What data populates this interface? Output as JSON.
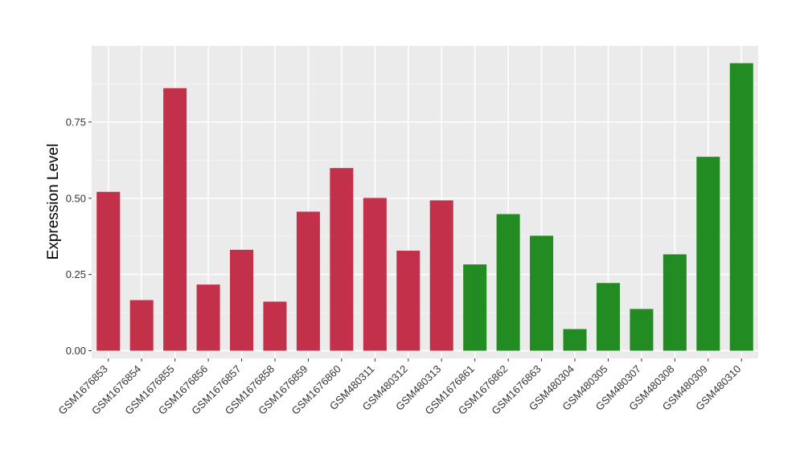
{
  "chart_data": {
    "type": "bar",
    "title": "",
    "xlabel": "",
    "ylabel": "Expression Level",
    "categories": [
      "GSM1676853",
      "GSM1676854",
      "GSM1676855",
      "GSM1676856",
      "GSM1676857",
      "GSM1676858",
      "GSM1676859",
      "GSM1676860",
      "GSM480311",
      "GSM480312",
      "GSM480313",
      "GSM1676861",
      "GSM1676862",
      "GSM1676863",
      "GSM480304",
      "GSM480305",
      "GSM480307",
      "GSM480308",
      "GSM480309",
      "GSM480310"
    ],
    "values": [
      0.521,
      0.166,
      0.861,
      0.217,
      0.331,
      0.161,
      0.456,
      0.599,
      0.501,
      0.328,
      0.493,
      0.283,
      0.448,
      0.377,
      0.071,
      0.222,
      0.137,
      0.316,
      0.636,
      0.943
    ],
    "bar_colors": [
      "#c3304a",
      "#c3304a",
      "#c3304a",
      "#c3304a",
      "#c3304a",
      "#c3304a",
      "#c3304a",
      "#c3304a",
      "#c3304a",
      "#c3304a",
      "#c3304a",
      "#228b22",
      "#228b22",
      "#228b22",
      "#228b22",
      "#228b22",
      "#228b22",
      "#228b22",
      "#228b22",
      "#228b22"
    ],
    "yticks": [
      0.0,
      0.25,
      0.5,
      0.75
    ],
    "ytick_labels": [
      "0.00",
      "0.25",
      "0.50",
      "0.75"
    ],
    "ylim": [
      -0.025,
      1.0
    ],
    "grid": true,
    "legend": "none",
    "colors": {
      "panel": "#ebebeb",
      "grid_major": "#ffffff",
      "grid_minor": "#f5f5f5",
      "group_1": "#c3304a",
      "group_2": "#228b22"
    }
  }
}
